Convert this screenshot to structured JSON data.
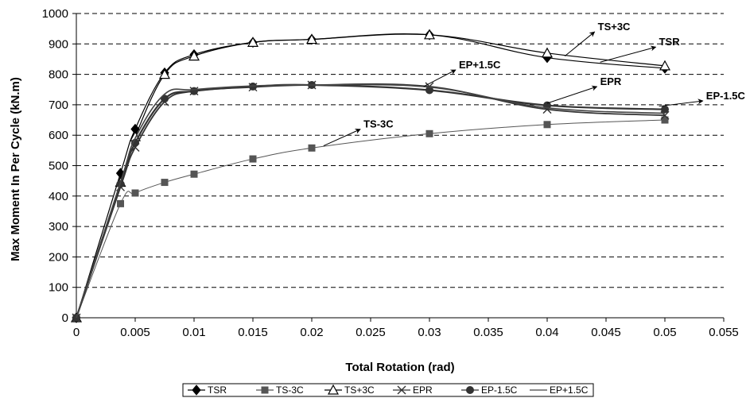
{
  "chart_data": {
    "type": "line",
    "title": "",
    "xlabel": "Total Rotation (rad)",
    "ylabel": "Max Moment In Per Cycle (kN.m)",
    "xlim": [
      0,
      0.055
    ],
    "ylim": [
      0,
      1000
    ],
    "xticks": [
      0,
      0.005,
      0.01,
      0.015,
      0.02,
      0.025,
      0.03,
      0.035,
      0.04,
      0.045,
      0.05,
      0.055
    ],
    "xtick_labels": [
      "0",
      "0.005",
      "0.01",
      "0.015",
      "0.02",
      "0.025",
      "0.03",
      "0.035",
      "0.04",
      "0.045",
      "0.05",
      "0.055"
    ],
    "yticks": [
      0,
      100,
      200,
      300,
      400,
      500,
      600,
      700,
      800,
      900,
      1000
    ],
    "ytick_labels": [
      "0",
      "100",
      "200",
      "300",
      "400",
      "500",
      "600",
      "700",
      "800",
      "900",
      "1000"
    ],
    "grid": "horizontal dashed",
    "legend_position": "bottom",
    "series": [
      {
        "name": "TSR",
        "marker": "diamond",
        "color": "#000000",
        "x": [
          0,
          0.00375,
          0.005,
          0.0075,
          0.01,
          0.015,
          0.02,
          0.03,
          0.04,
          0.05
        ],
        "y": [
          0,
          475,
          620,
          805,
          865,
          905,
          915,
          930,
          855,
          820
        ]
      },
      {
        "name": "TS-3C",
        "marker": "square",
        "color": "#555555",
        "x": [
          0,
          0.00375,
          0.005,
          0.0075,
          0.01,
          0.015,
          0.02,
          0.03,
          0.04,
          0.05
        ],
        "y": [
          0,
          375,
          410,
          445,
          472,
          522,
          558,
          605,
          635,
          650
        ]
      },
      {
        "name": "TS+3C",
        "marker": "triangle",
        "color": "#000000",
        "x": [
          0,
          0.00375,
          0.005,
          0.0075,
          0.01,
          0.015,
          0.02,
          0.03,
          0.04,
          0.05
        ],
        "y": [
          0,
          445,
          595,
          800,
          860,
          905,
          915,
          930,
          870,
          828
        ]
      },
      {
        "name": "EPR",
        "marker": "x",
        "color": "#333333",
        "x": [
          0,
          0.00375,
          0.005,
          0.0075,
          0.01,
          0.015,
          0.02,
          0.03,
          0.04,
          0.05
        ],
        "y": [
          0,
          430,
          560,
          710,
          745,
          758,
          765,
          760,
          685,
          665
        ]
      },
      {
        "name": "EP-1.5C",
        "marker": "circle",
        "color": "#333333",
        "x": [
          0,
          0.00375,
          0.005,
          0.0075,
          0.01,
          0.015,
          0.02,
          0.03,
          0.04,
          0.05
        ],
        "y": [
          0,
          440,
          575,
          720,
          745,
          760,
          765,
          748,
          698,
          685
        ]
      },
      {
        "name": "EP+1.5C",
        "marker": "none",
        "color": "#444444",
        "x": [
          0,
          0.00375,
          0.005,
          0.0075,
          0.01,
          0.015,
          0.02,
          0.03,
          0.04,
          0.05
        ],
        "y": [
          0,
          445,
          590,
          735,
          750,
          762,
          765,
          758,
          690,
          672
        ]
      }
    ],
    "annotations": [
      {
        "text": "TS+3C",
        "x": 0.0443,
        "y": 945,
        "point_x": 0.0415,
        "point_y": 860
      },
      {
        "text": "TSR",
        "x": 0.0495,
        "y": 895,
        "point_x": 0.0445,
        "point_y": 840
      },
      {
        "text": "EP+1.5C",
        "x": 0.0325,
        "y": 820,
        "point_x": 0.0295,
        "point_y": 760
      },
      {
        "text": "EPR",
        "x": 0.0445,
        "y": 765,
        "point_x": 0.04,
        "point_y": 705
      },
      {
        "text": "EP-1.5C",
        "x": 0.0535,
        "y": 718,
        "point_x": 0.0495,
        "point_y": 695
      },
      {
        "text": "TS-3C",
        "x": 0.0244,
        "y": 625,
        "point_x": 0.021,
        "point_y": 565
      }
    ]
  }
}
